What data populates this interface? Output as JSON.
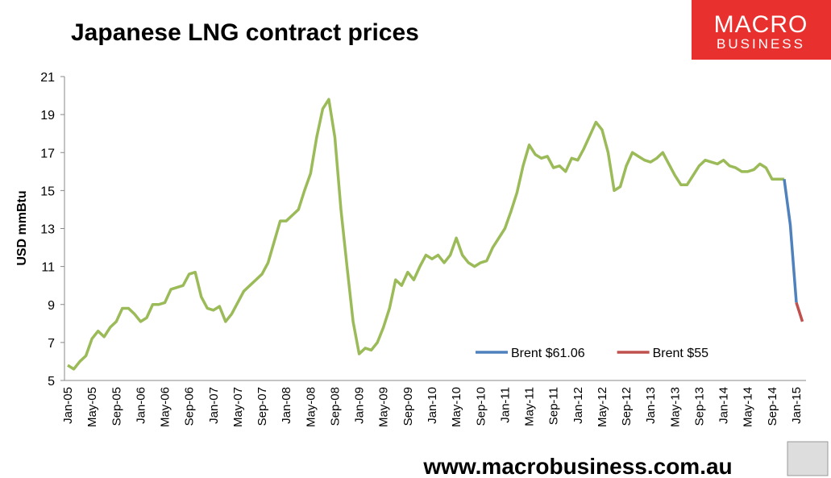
{
  "chart_data": {
    "type": "line",
    "title": "Japanese LNG contract prices",
    "logo": {
      "line1": "MACRO",
      "line2": "BUSINESS"
    },
    "footer": "www.macrobusiness.com.au",
    "y_label": "USD mmBtu",
    "ylim": [
      5,
      21
    ],
    "yticks": [
      5,
      7,
      9,
      11,
      13,
      15,
      17,
      19,
      21
    ],
    "grid": false,
    "legend": "lower right",
    "categories": [
      "Jan-05",
      null,
      null,
      null,
      "May-05",
      null,
      null,
      null,
      "Sep-05",
      null,
      null,
      null,
      "Jan-06",
      null,
      null,
      null,
      "May-06",
      null,
      null,
      null,
      "Sep-06",
      null,
      null,
      null,
      "Jan-07",
      null,
      null,
      null,
      "May-07",
      null,
      null,
      null,
      "Sep-07",
      null,
      null,
      null,
      "Jan-08",
      null,
      null,
      null,
      "May-08",
      null,
      null,
      null,
      "Sep-08",
      null,
      null,
      null,
      "Jan-09",
      null,
      null,
      null,
      "May-09",
      null,
      null,
      null,
      "Sep-09",
      null,
      null,
      null,
      "Jan-10",
      null,
      null,
      null,
      "May-10",
      null,
      null,
      null,
      "Sep-10",
      null,
      null,
      null,
      "Jan-11",
      null,
      null,
      null,
      "May-11",
      null,
      null,
      null,
      "Sep-11",
      null,
      null,
      null,
      "Jan-12",
      null,
      null,
      null,
      "May-12",
      null,
      null,
      null,
      "Sep-12",
      null,
      null,
      null,
      "Jan-13",
      null,
      null,
      null,
      "May-13",
      null,
      null,
      null,
      "Sep-13",
      null,
      null,
      null,
      "Jan-14",
      null,
      null,
      null,
      "May-14",
      null,
      null,
      null,
      "Sep-14",
      null,
      null,
      null,
      "Jan-15",
      null
    ],
    "series": [
      {
        "color": "#9bbb59",
        "values": [
          5.8,
          5.6,
          6.0,
          6.3,
          7.2,
          7.6,
          7.3,
          7.8,
          8.1,
          8.8,
          8.8,
          8.5,
          8.1,
          8.3,
          9.0,
          9.0,
          9.1,
          9.8,
          9.9,
          10.0,
          10.6,
          10.7,
          9.4,
          8.8,
          8.7,
          8.9,
          8.1,
          8.5,
          9.1,
          9.7,
          10.0,
          10.3,
          10.6,
          11.2,
          12.3,
          13.4,
          13.4,
          13.7,
          14.0,
          15.0,
          15.9,
          17.8,
          19.3,
          19.8,
          17.8,
          14.0,
          11.0,
          8.1,
          6.4,
          6.7,
          6.6,
          7.0,
          7.8,
          8.8,
          10.3,
          10.0,
          10.7,
          10.3,
          11.0,
          11.6,
          11.4,
          11.6,
          11.2,
          11.6,
          12.5,
          11.6,
          11.2,
          11.0,
          11.2,
          11.3,
          12.0,
          12.5,
          13.0,
          13.9,
          14.9,
          16.3,
          17.4,
          16.9,
          16.7,
          16.8,
          16.2,
          16.3,
          16.0,
          16.7,
          16.6,
          17.2,
          17.9,
          18.6,
          18.2,
          17.0,
          15.0,
          15.2,
          16.3,
          17.0,
          16.8,
          16.6,
          16.5,
          16.7,
          17.0,
          16.4,
          15.8,
          15.3,
          15.3,
          15.8,
          16.3,
          16.6,
          16.5,
          16.4,
          16.6,
          16.3,
          16.2,
          16.0,
          16.0,
          16.1,
          16.4,
          16.2,
          15.6,
          15.6,
          15.6,
          null,
          null,
          null
        ]
      },
      {
        "name": "Brent $61.06",
        "color": "#4f81bd",
        "values": [
          null,
          null,
          null,
          null,
          null,
          null,
          null,
          null,
          null,
          null,
          null,
          null,
          null,
          null,
          null,
          null,
          null,
          null,
          null,
          null,
          null,
          null,
          null,
          null,
          null,
          null,
          null,
          null,
          null,
          null,
          null,
          null,
          null,
          null,
          null,
          null,
          null,
          null,
          null,
          null,
          null,
          null,
          null,
          null,
          null,
          null,
          null,
          null,
          null,
          null,
          null,
          null,
          null,
          null,
          null,
          null,
          null,
          null,
          null,
          null,
          null,
          null,
          null,
          null,
          null,
          null,
          null,
          null,
          null,
          null,
          null,
          null,
          null,
          null,
          null,
          null,
          null,
          null,
          null,
          null,
          null,
          null,
          null,
          null,
          null,
          null,
          null,
          null,
          null,
          null,
          null,
          null,
          null,
          null,
          null,
          null,
          null,
          null,
          null,
          null,
          null,
          null,
          null,
          null,
          null,
          null,
          null,
          null,
          null,
          null,
          null,
          null,
          null,
          null,
          null,
          null,
          null,
          null,
          15.6,
          13.2,
          9.1,
          null
        ]
      },
      {
        "name": "Brent $55",
        "color": "#c0504d",
        "values": [
          null,
          null,
          null,
          null,
          null,
          null,
          null,
          null,
          null,
          null,
          null,
          null,
          null,
          null,
          null,
          null,
          null,
          null,
          null,
          null,
          null,
          null,
          null,
          null,
          null,
          null,
          null,
          null,
          null,
          null,
          null,
          null,
          null,
          null,
          null,
          null,
          null,
          null,
          null,
          null,
          null,
          null,
          null,
          null,
          null,
          null,
          null,
          null,
          null,
          null,
          null,
          null,
          null,
          null,
          null,
          null,
          null,
          null,
          null,
          null,
          null,
          null,
          null,
          null,
          null,
          null,
          null,
          null,
          null,
          null,
          null,
          null,
          null,
          null,
          null,
          null,
          null,
          null,
          null,
          null,
          null,
          null,
          null,
          null,
          null,
          null,
          null,
          null,
          null,
          null,
          null,
          null,
          null,
          null,
          null,
          null,
          null,
          null,
          null,
          null,
          null,
          null,
          null,
          null,
          null,
          null,
          null,
          null,
          null,
          null,
          null,
          null,
          null,
          null,
          null,
          null,
          null,
          null,
          null,
          null,
          9.1,
          8.1
        ]
      }
    ]
  }
}
